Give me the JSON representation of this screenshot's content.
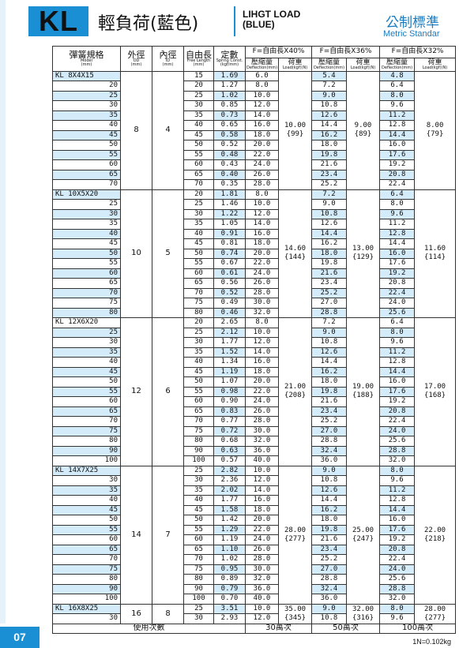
{
  "header": {
    "logo": "KL",
    "title": "輕負荷(藍色)",
    "subtitle_en": [
      "LIHGT LOAD",
      "(BLUE)"
    ],
    "standard": "公制標準",
    "standard_en": "Metric Standar"
  },
  "table": {
    "head": {
      "model": [
        "彈簧規格",
        "Model",
        "(mm)"
      ],
      "od": [
        "外徑",
        "OD",
        "(mm)"
      ],
      "id": [
        "內徑",
        "ID",
        "(mm)"
      ],
      "length": [
        "自由長",
        "Free Length",
        "(mm)"
      ],
      "const": [
        "定數",
        "Spring Const.",
        "(kgf/mm)"
      ],
      "f": [
        "F=自由長X40%",
        "F=自由長X36%",
        "F=自由長X32%"
      ],
      "deflection": [
        "壓縮量",
        "Deflection(mm)"
      ],
      "load": [
        "荷重",
        "Load(kgf)(N)"
      ]
    },
    "groups": [
      {
        "model": "KL 8X4X15",
        "od": "8",
        "id": "4",
        "loads": [
          [
            "10.00",
            "{99}"
          ],
          [
            "9.00",
            "{89}"
          ],
          [
            "8.00",
            "{79}"
          ]
        ],
        "rows": [
          [
            "15",
            "1.69",
            "6.0",
            "5.4",
            "4.8"
          ],
          [
            "20",
            "1.27",
            "8.0",
            "7.2",
            "6.4"
          ],
          [
            "25",
            "1.02",
            "10.0",
            "9.0",
            "8.0"
          ],
          [
            "30",
            "0.85",
            "12.0",
            "10.8",
            "9.6"
          ],
          [
            "35",
            "0.73",
            "14.0",
            "12.6",
            "11.2"
          ],
          [
            "40",
            "0.65",
            "16.0",
            "14.4",
            "12.8"
          ],
          [
            "45",
            "0.58",
            "18.0",
            "16.2",
            "14.4"
          ],
          [
            "50",
            "0.52",
            "20.0",
            "18.0",
            "16.0"
          ],
          [
            "55",
            "0.48",
            "22.0",
            "19.8",
            "17.6"
          ],
          [
            "60",
            "0.43",
            "24.0",
            "21.6",
            "19.2"
          ],
          [
            "65",
            "0.40",
            "26.0",
            "23.4",
            "20.8"
          ],
          [
            "70",
            "0.35",
            "28.0",
            "25.2",
            "22.4"
          ]
        ]
      },
      {
        "model": "KL 10X5X20",
        "od": "10",
        "id": "5",
        "loads": [
          [
            "14.60",
            "{144}"
          ],
          [
            "13.00",
            "{129}"
          ],
          [
            "11.60",
            "{114}"
          ]
        ],
        "rows": [
          [
            "20",
            "1.81",
            "8.0",
            "7.2",
            "6.4"
          ],
          [
            "25",
            "1.46",
            "10.0",
            "9.0",
            "8.0"
          ],
          [
            "30",
            "1.22",
            "12.0",
            "10.8",
            "9.6"
          ],
          [
            "35",
            "1.05",
            "14.0",
            "12.6",
            "11.2"
          ],
          [
            "40",
            "0.91",
            "16.0",
            "14.4",
            "12.8"
          ],
          [
            "45",
            "0.81",
            "18.0",
            "16.2",
            "14.4"
          ],
          [
            "50",
            "0.74",
            "20.0",
            "18.0",
            "16.0"
          ],
          [
            "55",
            "0.67",
            "22.0",
            "19.8",
            "17.6"
          ],
          [
            "60",
            "0.61",
            "24.0",
            "21.6",
            "19.2"
          ],
          [
            "65",
            "0.56",
            "26.0",
            "23.4",
            "20.8"
          ],
          [
            "70",
            "0.52",
            "28.0",
            "25.2",
            "22.4"
          ],
          [
            "75",
            "0.49",
            "30.0",
            "27.0",
            "24.0"
          ],
          [
            "80",
            "0.46",
            "32.0",
            "28.8",
            "25.6"
          ]
        ]
      },
      {
        "model": "KL 12X6X20",
        "od": "12",
        "id": "6",
        "loads": [
          [
            "21.00",
            "{208}"
          ],
          [
            "19.00",
            "{188}"
          ],
          [
            "17.00",
            "{168}"
          ]
        ],
        "rows": [
          [
            "20",
            "2.65",
            "8.0",
            "7.2",
            "6.4"
          ],
          [
            "25",
            "2.12",
            "10.0",
            "9.0",
            "8.0"
          ],
          [
            "30",
            "1.77",
            "12.0",
            "10.8",
            "9.6"
          ],
          [
            "35",
            "1.52",
            "14.0",
            "12.6",
            "11.2"
          ],
          [
            "40",
            "1.34",
            "16.0",
            "14.4",
            "12.8"
          ],
          [
            "45",
            "1.19",
            "18.0",
            "16.2",
            "14.4"
          ],
          [
            "50",
            "1.07",
            "20.0",
            "18.0",
            "16.0"
          ],
          [
            "55",
            "0.98",
            "22.0",
            "19.8",
            "17.6"
          ],
          [
            "60",
            "0.90",
            "24.0",
            "21.6",
            "19.2"
          ],
          [
            "65",
            "0.83",
            "26.0",
            "23.4",
            "20.8"
          ],
          [
            "70",
            "0.77",
            "28.0",
            "25.2",
            "22.4"
          ],
          [
            "75",
            "0.72",
            "30.0",
            "27.0",
            "24.0"
          ],
          [
            "80",
            "0.68",
            "32.0",
            "28.8",
            "25.6"
          ],
          [
            "90",
            "0.63",
            "36.0",
            "32.4",
            "28.8"
          ],
          [
            "100",
            "0.57",
            "40.0",
            "36.0",
            "32.0"
          ]
        ]
      },
      {
        "model": "KL 14X7X25",
        "od": "14",
        "id": "7",
        "loads": [
          [
            "28.00",
            "{277}"
          ],
          [
            "25.00",
            "{247}"
          ],
          [
            "22.00",
            "{218}"
          ]
        ],
        "rows": [
          [
            "25",
            "2.82",
            "10.0",
            "9.0",
            "8.0"
          ],
          [
            "30",
            "2.36",
            "12.0",
            "10.8",
            "9.6"
          ],
          [
            "35",
            "2.02",
            "14.0",
            "12.6",
            "11.2"
          ],
          [
            "40",
            "1.77",
            "16.0",
            "14.4",
            "12.8"
          ],
          [
            "45",
            "1.58",
            "18.0",
            "16.2",
            "14.4"
          ],
          [
            "50",
            "1.42",
            "20.0",
            "18.0",
            "16.0"
          ],
          [
            "55",
            "1.29",
            "22.0",
            "19.8",
            "17.6"
          ],
          [
            "60",
            "1.19",
            "24.0",
            "21.6",
            "19.2"
          ],
          [
            "65",
            "1.10",
            "26.0",
            "23.4",
            "20.8"
          ],
          [
            "70",
            "1.02",
            "28.0",
            "25.2",
            "22.4"
          ],
          [
            "75",
            "0.95",
            "30.0",
            "27.0",
            "24.0"
          ],
          [
            "80",
            "0.89",
            "32.0",
            "28.8",
            "25.6"
          ],
          [
            "90",
            "0.79",
            "36.0",
            "32.4",
            "28.8"
          ],
          [
            "100",
            "0.70",
            "40.0",
            "36.0",
            "32.0"
          ]
        ]
      },
      {
        "model": "KL 16X8X25",
        "od": "16",
        "id": "8",
        "loads": [
          [
            "35.00",
            "{345}"
          ],
          [
            "32.00",
            "{316}"
          ],
          [
            "28.00",
            "{277}"
          ]
        ],
        "rows": [
          [
            "25",
            "3.51",
            "10.0",
            "9.0",
            "8.0"
          ],
          [
            "30",
            "2.93",
            "12.0",
            "10.8",
            "9.6"
          ]
        ]
      }
    ],
    "footer": {
      "label": "使用次數",
      "cycles": [
        "30萬次",
        "50萬次",
        "100萬次"
      ],
      "note": "1N=0.102kg"
    }
  },
  "page": "07"
}
